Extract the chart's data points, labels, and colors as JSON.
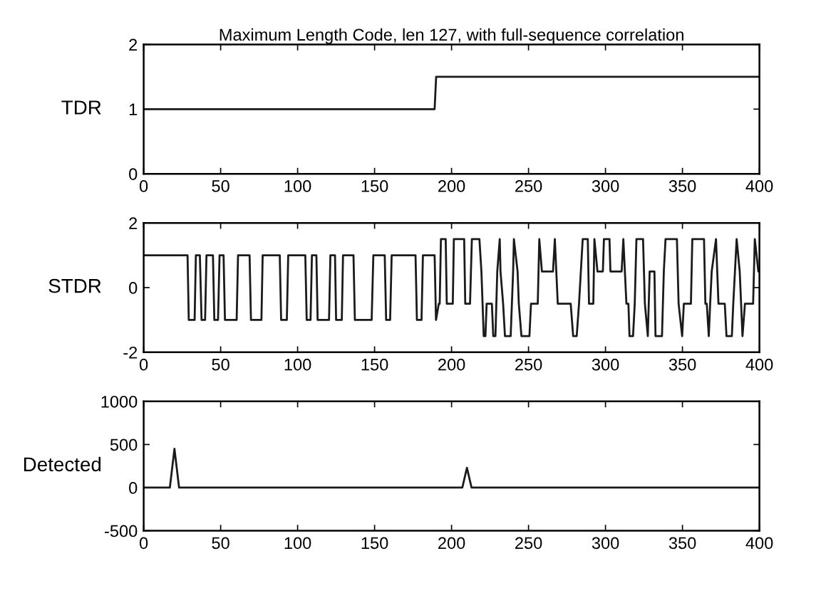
{
  "chart_data": [
    {
      "type": "line",
      "title": "Maximum Length Code, len 127, with full-sequence correlation",
      "ylabel": "TDR",
      "xlim": [
        0,
        400
      ],
      "xticks": [
        0,
        50,
        100,
        150,
        200,
        250,
        300,
        350,
        400
      ],
      "ylim": [
        0,
        2
      ],
      "yticks": [
        0,
        1,
        2
      ],
      "grid": false,
      "series": [
        {
          "color": "#1a1a1a",
          "x": [
            0,
            189,
            190,
            400
          ],
          "values": [
            1,
            1,
            1.5,
            1.5
          ]
        }
      ]
    },
    {
      "type": "line",
      "ylabel": "STDR",
      "xlim": [
        0,
        400
      ],
      "xticks": [
        0,
        50,
        100,
        150,
        200,
        250,
        300,
        350,
        400
      ],
      "ylim": [
        -2,
        2
      ],
      "yticks": [
        -2,
        0,
        2
      ],
      "grid": false,
      "series": [
        {
          "color": "#1a1a1a",
          "x": [
            0,
            28.5,
            29.3,
            33.1,
            33.9,
            36.5,
            37.6,
            39.9,
            40.8,
            45.0,
            45.9,
            48.3,
            49.3,
            51.9,
            52.8,
            60.4,
            61.3,
            68.8,
            69.7,
            76.5,
            77.3,
            88.4,
            89.3,
            93.0,
            93.9,
            105.0,
            105.9,
            108.4,
            109.3,
            112.2,
            113.0,
            120.4,
            121.3,
            124.3,
            125.0,
            128.7,
            129.5,
            136.3,
            137.2,
            148.1,
            149.2,
            156.6,
            157.5,
            160.1,
            161.1,
            176.6,
            177.5,
            180.5,
            181.4,
            189.0,
            189.9,
            191.7,
            192.3,
            193.1,
            196.2,
            196.9,
            200.8,
            201.5,
            208.2,
            208.9,
            212.0,
            213.2,
            218.1,
            219.4,
            220.9,
            222.0,
            222.8,
            226.2,
            227.1,
            228.5,
            229.7,
            231.3,
            231.8,
            233.5,
            234.7,
            238.4,
            239.2,
            240.0,
            240.5,
            242.9,
            243.7,
            245.4,
            250.6,
            251.6,
            256.0,
            257.0,
            258.7,
            265.9,
            267.1,
            269.0,
            277.4,
            279.0,
            281.3,
            282.8,
            285.2,
            288.5,
            289.3,
            292.1,
            292.8,
            294.8,
            298.3,
            299.0,
            302.6,
            303.2,
            310.5,
            311.6,
            313.6,
            314.9,
            315.6,
            317.9,
            319.0,
            320.1,
            324.4,
            325.6,
            327.5,
            328.7,
            331.8,
            332.5,
            336.7,
            337.9,
            339.0,
            346.4,
            347.5,
            349.8,
            350.9,
            355.5,
            356.4,
            364.0,
            364.9,
            365.8,
            367.1,
            368.0,
            369.0,
            371.8,
            373.4,
            377.5,
            378.6,
            382.1,
            383.0,
            385.2,
            387.2,
            389.0,
            390.6,
            395.9,
            397.0,
            399.3,
            400
          ],
          "values": [
            1,
            1,
            -1,
            -1,
            1,
            1,
            -1,
            -1,
            1,
            1,
            -1,
            -1,
            1,
            1,
            -1,
            -1,
            1,
            1,
            -1,
            -1,
            1,
            1,
            -1,
            -1,
            1,
            1,
            -1,
            -1,
            1,
            1,
            -1,
            -1,
            1,
            1,
            -1,
            -1,
            1,
            1,
            -1,
            -1,
            1,
            1,
            -1,
            -1,
            1,
            1,
            -1,
            -1,
            1,
            1,
            -1,
            -0.5,
            -0.5,
            1.5,
            1.5,
            -0.5,
            -0.5,
            1.5,
            1.5,
            -0.5,
            -0.5,
            1.5,
            1.5,
            0.5,
            -1.5,
            -1.5,
            -0.5,
            -0.5,
            -1.5,
            -1.5,
            0.5,
            1.5,
            0.5,
            -0.5,
            -1.5,
            -1.5,
            -0.5,
            0.5,
            1.5,
            0.5,
            -0.5,
            -1.5,
            -1.5,
            -0.5,
            -0.5,
            1.5,
            0.5,
            0.5,
            1.5,
            -0.5,
            -0.5,
            -1.5,
            -1.5,
            -0.5,
            1.5,
            1.5,
            -0.5,
            -0.5,
            1.5,
            0.5,
            0.5,
            1.5,
            1.5,
            0.5,
            0.5,
            1.5,
            -0.5,
            -0.5,
            -1.5,
            -1.5,
            -0.5,
            1.5,
            1.5,
            -0.5,
            -1.5,
            0.5,
            0.5,
            -1.5,
            -1.5,
            0.5,
            1.5,
            1.5,
            -0.5,
            -1.5,
            -0.5,
            -0.5,
            1.5,
            1.5,
            -0.5,
            -0.5,
            -1.5,
            -0.5,
            0.5,
            1.5,
            -0.5,
            -0.5,
            -1.5,
            -1.5,
            -0.5,
            1.5,
            0.5,
            -1.5,
            -0.5,
            -0.5,
            1.5,
            0.5,
            0.5
          ]
        }
      ]
    },
    {
      "type": "line",
      "ylabel": "Detected",
      "xlim": [
        0,
        400
      ],
      "xticks": [
        0,
        50,
        100,
        150,
        200,
        250,
        300,
        350,
        400
      ],
      "ylim": [
        -500,
        1000
      ],
      "yticks": [
        -500,
        0,
        500,
        1000
      ],
      "grid": false,
      "series": [
        {
          "color": "#1a1a1a",
          "x": [
            0,
            17,
            20,
            23,
            207,
            210,
            213,
            400
          ],
          "values": [
            0,
            0,
            450,
            0,
            0,
            230,
            0,
            0
          ]
        }
      ]
    }
  ]
}
